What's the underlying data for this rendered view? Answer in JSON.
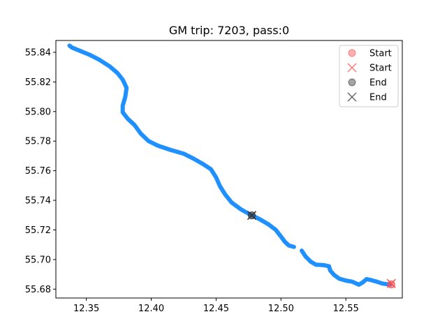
{
  "chart_data": {
    "type": "scatter",
    "title": "GM trip: 7203, pass:0",
    "xlabel": "",
    "ylabel": "",
    "xlim": [
      12.3265,
      12.5935
    ],
    "ylim": [
      55.674,
      55.848
    ],
    "xticks": [
      "12.35",
      "12.40",
      "12.45",
      "12.50",
      "12.55"
    ],
    "yticks": [
      "55.68",
      "55.70",
      "55.72",
      "55.74",
      "55.76",
      "55.78",
      "55.80",
      "55.82",
      "55.84"
    ],
    "grid": false,
    "legend_position": "top-right",
    "colors": {
      "track": "#1e90ff",
      "start": "#ff4d4d",
      "end": "#333333"
    },
    "series": [
      {
        "name": "track",
        "segments": [
          [
            [
              12.337,
              55.8445
            ],
            [
              12.339,
              55.8432
            ],
            [
              12.345,
              55.841
            ],
            [
              12.352,
              55.8385
            ],
            [
              12.36,
              55.835
            ],
            [
              12.368,
              55.8305
            ],
            [
              12.374,
              55.826
            ],
            [
              12.378,
              55.8215
            ],
            [
              12.381,
              55.816
            ],
            [
              12.38,
              55.81
            ],
            [
              12.378,
              55.804
            ],
            [
              12.378,
              55.7995
            ],
            [
              12.382,
              55.795
            ],
            [
              12.387,
              55.791
            ],
            [
              12.392,
              55.785
            ],
            [
              12.398,
              55.78
            ],
            [
              12.405,
              55.777
            ],
            [
              12.415,
              55.774
            ],
            [
              12.425,
              55.7715
            ],
            [
              12.433,
              55.768
            ],
            [
              12.44,
              55.7645
            ],
            [
              12.446,
              55.761
            ],
            [
              12.45,
              55.7555
            ],
            [
              12.453,
              55.7495
            ],
            [
              12.457,
              55.744
            ],
            [
              12.462,
              55.7385
            ],
            [
              12.469,
              55.734
            ],
            [
              12.476,
              55.7305
            ],
            [
              12.483,
              55.7275
            ],
            [
              12.49,
              55.724
            ],
            [
              12.496,
              55.72
            ],
            [
              12.5,
              55.7155
            ],
            [
              12.503,
              55.712
            ],
            [
              12.506,
              55.7095
            ],
            [
              12.51,
              55.7085
            ]
          ],
          [
            [
              12.516,
              55.706
            ],
            [
              12.519,
              55.702
            ],
            [
              12.523,
              55.6985
            ],
            [
              12.527,
              55.6965
            ],
            [
              12.533,
              55.6962
            ],
            [
              12.537,
              55.6955
            ],
            [
              12.538,
              55.6925
            ],
            [
              12.541,
              55.6895
            ],
            [
              12.545,
              55.687
            ],
            [
              12.55,
              55.6858
            ],
            [
              12.555,
              55.685
            ],
            [
              12.56,
              55.683
            ],
            [
              12.563,
              55.6845
            ],
            [
              12.566,
              55.6868
            ],
            [
              12.57,
              55.686
            ],
            [
              12.574,
              55.685
            ],
            [
              12.578,
              55.6838
            ],
            [
              12.584,
              55.683
            ]
          ]
        ]
      }
    ],
    "markers": [
      {
        "name": "Start",
        "shape": "circle",
        "x": 12.585,
        "y": 55.6832
      },
      {
        "name": "Start",
        "shape": "x",
        "x": 12.585,
        "y": 55.6838
      },
      {
        "name": "End",
        "shape": "circle",
        "x": 12.4775,
        "y": 55.7298
      },
      {
        "name": "End",
        "shape": "x",
        "x": 12.4775,
        "y": 55.7298
      }
    ],
    "legend": [
      {
        "label": "Start",
        "shape": "circle",
        "color_key": "start"
      },
      {
        "label": "Start",
        "shape": "x",
        "color_key": "start"
      },
      {
        "label": "End",
        "shape": "circle",
        "color_key": "end"
      },
      {
        "label": "End",
        "shape": "x",
        "color_key": "end"
      }
    ]
  }
}
